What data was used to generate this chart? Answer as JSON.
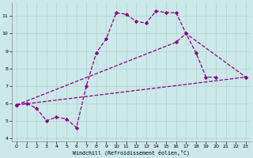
{
  "xlabel": "Windchill (Refroidissement éolien,°C)",
  "bg_color": "#cce8e8",
  "line_color": "#880088",
  "xlim": [
    -0.5,
    23.5
  ],
  "ylim": [
    3.8,
    11.8
  ],
  "yticks": [
    4,
    5,
    6,
    7,
    8,
    9,
    10,
    11
  ],
  "xticks": [
    0,
    1,
    2,
    3,
    4,
    5,
    6,
    7,
    8,
    9,
    10,
    11,
    12,
    13,
    14,
    15,
    16,
    17,
    18,
    19,
    20,
    21,
    22,
    23
  ],
  "line1_x": [
    0,
    1,
    2,
    3,
    4,
    5,
    6,
    7,
    8,
    9,
    10,
    11,
    12,
    13,
    14,
    15,
    16,
    17,
    18,
    19,
    20
  ],
  "line1_y": [
    5.9,
    6.0,
    5.7,
    5.0,
    5.2,
    5.1,
    4.6,
    7.0,
    8.9,
    9.7,
    11.2,
    11.1,
    10.7,
    10.6,
    11.3,
    11.2,
    11.2,
    10.0,
    8.9,
    7.5,
    7.5
  ],
  "line2_x": [
    0,
    16,
    17,
    23
  ],
  "line2_y": [
    5.9,
    9.5,
    10.0,
    7.5
  ],
  "line3_x": [
    0,
    23
  ],
  "line3_y": [
    5.9,
    7.5
  ],
  "marker": "D",
  "markersize": 2.2,
  "linewidth": 0.9
}
